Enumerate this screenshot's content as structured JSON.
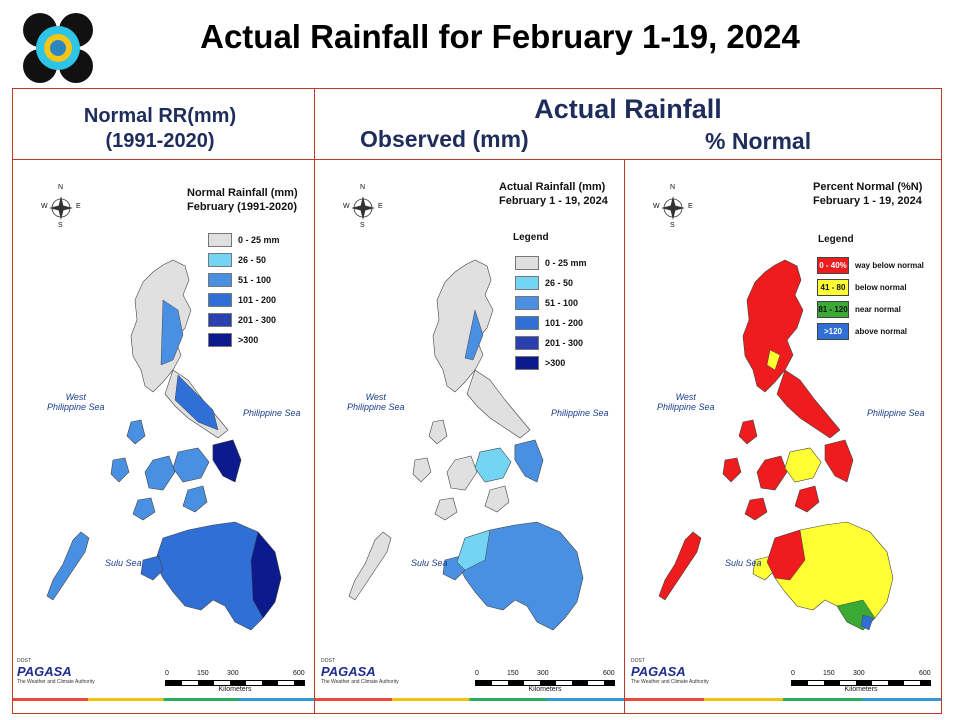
{
  "title": "Actual Rainfall for February 1-19, 2024",
  "headers": {
    "normal": "Normal RR(mm)",
    "normal_period": "(1991-2020)",
    "actual": "Actual Rainfall",
    "observed": "Observed (mm)",
    "percent": "% Normal"
  },
  "compass": {
    "n": "N",
    "s": "S",
    "e": "E",
    "w": "W"
  },
  "seas": {
    "west": "West",
    "west2": "Philippine Sea",
    "east": "Philippine Sea",
    "sulu": "Sulu Sea"
  },
  "panels": {
    "normal": {
      "title1": "Normal Rainfall (mm)",
      "title2": "February (1991-2020)",
      "legend": [
        {
          "label": "0 - 25 mm",
          "color": "#e0e0e0"
        },
        {
          "label": "26 - 50",
          "color": "#74d4f4"
        },
        {
          "label": "51 - 100",
          "color": "#4a90e2"
        },
        {
          "label": "101 - 200",
          "color": "#2f6fd6"
        },
        {
          "label": "201 - 300",
          "color": "#2a3fb0"
        },
        {
          "label": ">300",
          "color": "#0b1a8c"
        }
      ]
    },
    "observed": {
      "title1": "Actual Rainfall (mm)",
      "title2": "February 1 - 19, 2024",
      "legend_title": "Legend",
      "legend": [
        {
          "label": "0 - 25 mm",
          "color": "#e0e0e0"
        },
        {
          "label": "26 - 50",
          "color": "#74d4f4"
        },
        {
          "label": "51 - 100",
          "color": "#4a90e2"
        },
        {
          "label": "101 - 200",
          "color": "#2f6fd6"
        },
        {
          "label": "201 - 300",
          "color": "#2a3fb0"
        },
        {
          "label": ">300",
          "color": "#0b1a8c"
        }
      ]
    },
    "percent": {
      "title1": "Percent Normal (%N)",
      "title2": "February 1 - 19, 2024",
      "legend_title": "Legend",
      "legend": [
        {
          "code": "0 - 40%",
          "label": "way below normal",
          "color": "#ee1c1c",
          "text": "#ffffff"
        },
        {
          "code": "41 - 80",
          "label": "below normal",
          "color": "#ffff33",
          "text": "#111111"
        },
        {
          "code": "81 - 120",
          "label": "near normal",
          "color": "#3aaa35",
          "text": "#111111"
        },
        {
          "code": ">120",
          "label": "above normal",
          "color": "#2f6fd6",
          "text": "#ffffff"
        }
      ]
    }
  },
  "scale": {
    "ticks": [
      "0",
      "150",
      "300",
      "600"
    ],
    "unit": "Kilometers"
  },
  "branding": {
    "dost": "DOST",
    "name": "PAGASA",
    "tagline": "The Weather and Climate Authority"
  }
}
